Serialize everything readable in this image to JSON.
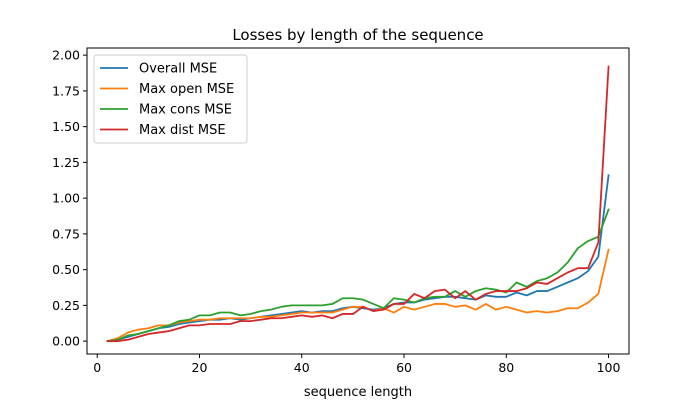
{
  "chart_data": {
    "type": "line",
    "title": "Losses by length of the sequence",
    "xlabel": "sequence length",
    "ylabel": "",
    "xlim": [
      -2,
      104
    ],
    "ylim": [
      -0.09,
      2.05
    ],
    "xticks": [
      0,
      20,
      40,
      60,
      80,
      100
    ],
    "yticks": [
      0.0,
      0.25,
      0.5,
      0.75,
      1.0,
      1.25,
      1.5,
      1.75,
      2.0
    ],
    "xtick_labels": [
      "0",
      "20",
      "40",
      "60",
      "80",
      "100"
    ],
    "ytick_labels": [
      "0.00",
      "0.25",
      "0.50",
      "0.75",
      "1.00",
      "1.25",
      "1.50",
      "1.75",
      "2.00"
    ],
    "grid": false,
    "legend_position": "upper-left",
    "x": [
      2,
      4,
      6,
      8,
      10,
      12,
      14,
      16,
      18,
      20,
      22,
      24,
      26,
      28,
      30,
      32,
      34,
      36,
      38,
      40,
      42,
      44,
      46,
      48,
      50,
      52,
      54,
      56,
      58,
      60,
      62,
      64,
      66,
      68,
      70,
      72,
      74,
      76,
      78,
      80,
      82,
      84,
      86,
      88,
      90,
      92,
      94,
      96,
      98,
      100
    ],
    "series": [
      {
        "name": "Overall MSE",
        "color": "#1f77b4",
        "values": [
          0.0,
          0.01,
          0.03,
          0.05,
          0.07,
          0.09,
          0.1,
          0.12,
          0.13,
          0.14,
          0.15,
          0.15,
          0.16,
          0.15,
          0.16,
          0.17,
          0.18,
          0.19,
          0.2,
          0.21,
          0.2,
          0.21,
          0.21,
          0.23,
          0.24,
          0.23,
          0.22,
          0.23,
          0.26,
          0.27,
          0.27,
          0.29,
          0.3,
          0.31,
          0.31,
          0.3,
          0.29,
          0.32,
          0.31,
          0.31,
          0.34,
          0.32,
          0.35,
          0.35,
          0.38,
          0.41,
          0.44,
          0.49,
          0.59,
          1.16
        ]
      },
      {
        "name": "Max open MSE",
        "color": "#ff7f0e",
        "values": [
          0.0,
          0.02,
          0.06,
          0.08,
          0.09,
          0.11,
          0.11,
          0.13,
          0.14,
          0.15,
          0.15,
          0.16,
          0.16,
          0.16,
          0.16,
          0.17,
          0.17,
          0.18,
          0.19,
          0.2,
          0.2,
          0.2,
          0.2,
          0.22,
          0.24,
          0.24,
          0.21,
          0.23,
          0.2,
          0.24,
          0.22,
          0.24,
          0.26,
          0.26,
          0.24,
          0.25,
          0.22,
          0.26,
          0.22,
          0.24,
          0.22,
          0.2,
          0.21,
          0.2,
          0.21,
          0.23,
          0.23,
          0.27,
          0.33,
          0.64
        ]
      },
      {
        "name": "Max cons MSE",
        "color": "#2ca02c",
        "values": [
          0.0,
          0.01,
          0.04,
          0.05,
          0.07,
          0.09,
          0.11,
          0.14,
          0.15,
          0.18,
          0.18,
          0.2,
          0.2,
          0.18,
          0.19,
          0.21,
          0.22,
          0.24,
          0.25,
          0.25,
          0.25,
          0.25,
          0.26,
          0.3,
          0.3,
          0.29,
          0.26,
          0.23,
          0.3,
          0.29,
          0.27,
          0.3,
          0.31,
          0.31,
          0.35,
          0.31,
          0.35,
          0.37,
          0.36,
          0.34,
          0.41,
          0.38,
          0.42,
          0.44,
          0.48,
          0.55,
          0.65,
          0.7,
          0.73,
          0.92
        ]
      },
      {
        "name": "Max dist MSE",
        "color": "#d62728",
        "values": [
          0.0,
          0.0,
          0.01,
          0.03,
          0.05,
          0.06,
          0.07,
          0.09,
          0.11,
          0.11,
          0.12,
          0.12,
          0.12,
          0.14,
          0.14,
          0.15,
          0.16,
          0.16,
          0.17,
          0.18,
          0.17,
          0.18,
          0.16,
          0.19,
          0.19,
          0.24,
          0.21,
          0.22,
          0.26,
          0.26,
          0.33,
          0.3,
          0.35,
          0.36,
          0.3,
          0.35,
          0.29,
          0.33,
          0.35,
          0.35,
          0.35,
          0.37,
          0.41,
          0.4,
          0.44,
          0.48,
          0.51,
          0.51,
          0.69,
          1.92
        ]
      }
    ]
  }
}
